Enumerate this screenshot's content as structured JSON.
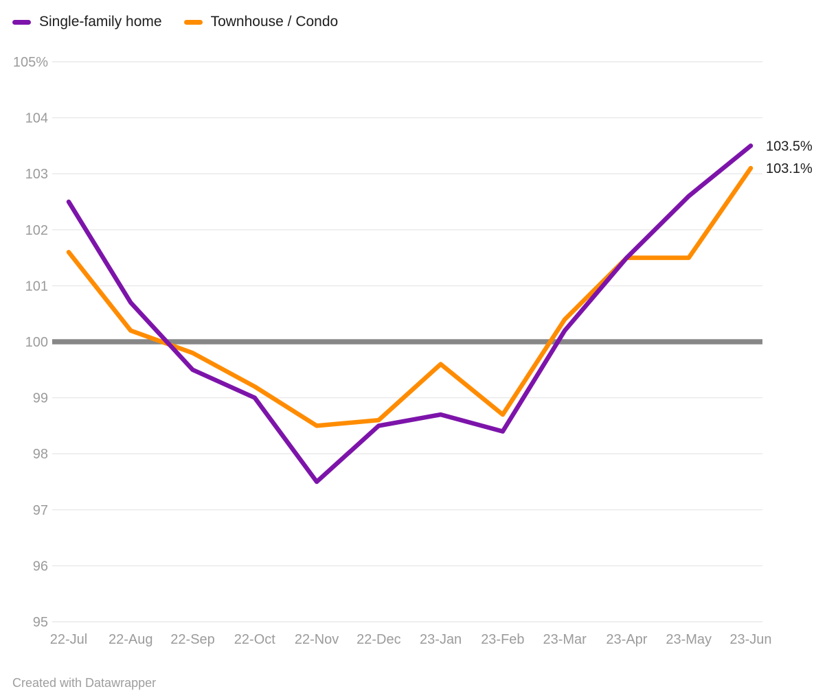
{
  "legend": {
    "items": [
      {
        "label": "Single-family home",
        "color": "#7d14aa"
      },
      {
        "label": "Townhouse / Condo",
        "color": "#ff8c00"
      }
    ]
  },
  "chart_data": {
    "type": "line",
    "x": [
      "22-Jul",
      "22-Aug",
      "22-Sep",
      "22-Oct",
      "22-Nov",
      "22-Dec",
      "23-Jan",
      "23-Feb",
      "23-Mar",
      "23-Apr",
      "23-May",
      "23-Jun"
    ],
    "series": [
      {
        "name": "Single-family home",
        "color": "#7d14aa",
        "values": [
          102.5,
          100.7,
          99.5,
          99.0,
          97.5,
          98.5,
          98.7,
          98.4,
          100.2,
          101.5,
          102.6,
          103.5
        ],
        "end_label": "103.5%"
      },
      {
        "name": "Townhouse / Condo",
        "color": "#ff8c00",
        "values": [
          101.6,
          100.2,
          99.8,
          99.2,
          98.5,
          98.6,
          99.6,
          98.7,
          100.4,
          101.5,
          101.5,
          103.1
        ],
        "end_label": "103.1%"
      }
    ],
    "ylim": [
      95,
      105
    ],
    "yticks": [
      {
        "value": 105,
        "label": "105%"
      },
      {
        "value": 104,
        "label": "104"
      },
      {
        "value": 103,
        "label": "103"
      },
      {
        "value": 102,
        "label": "102"
      },
      {
        "value": 101,
        "label": "101"
      },
      {
        "value": 100,
        "label": "100"
      },
      {
        "value": 99,
        "label": "99"
      },
      {
        "value": 98,
        "label": "98"
      },
      {
        "value": 97,
        "label": "97"
      },
      {
        "value": 96,
        "label": "96"
      },
      {
        "value": 95,
        "label": "95"
      }
    ],
    "baseline": {
      "value": 100
    },
    "grid": true,
    "legend_position": "top-left"
  },
  "style": {
    "grid_color": "#e8e8e8",
    "axis_text_color": "#9b9b9b",
    "end_label_color": "#1d1d1d",
    "baseline_color": "#878787"
  },
  "footer": {
    "credit": "Created with Datawrapper"
  }
}
